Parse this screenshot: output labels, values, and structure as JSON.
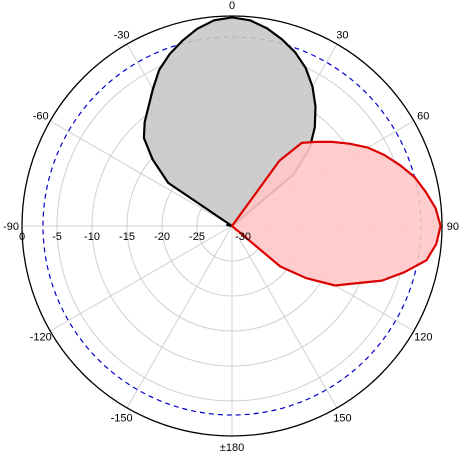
{
  "chart_data": {
    "type": "polar",
    "title": "",
    "angle_ticks": [
      {
        "angle": 0,
        "label": "0"
      },
      {
        "angle": 30,
        "label": "30"
      },
      {
        "angle": 60,
        "label": "60"
      },
      {
        "angle": 90,
        "label": "90"
      },
      {
        "angle": 120,
        "label": "120"
      },
      {
        "angle": 150,
        "label": "150"
      },
      {
        "angle": 180,
        "label": "±180"
      },
      {
        "angle": -150,
        "label": "-150"
      },
      {
        "angle": -120,
        "label": "-120"
      },
      {
        "angle": -90,
        "label": "-90"
      },
      {
        "angle": -60,
        "label": "-60"
      },
      {
        "angle": -30,
        "label": "-30"
      }
    ],
    "radial_ticks": [
      {
        "value": 0,
        "label": "0"
      },
      {
        "value": -5,
        "label": "-5"
      },
      {
        "value": -10,
        "label": "-10"
      },
      {
        "value": -15,
        "label": "-15"
      },
      {
        "value": -20,
        "label": "-20"
      },
      {
        "value": -25,
        "label": "-25"
      },
      {
        "value": -30,
        "label": "-30"
      }
    ],
    "r_range": [
      -30,
      0
    ],
    "grid": true,
    "reference_circle": {
      "value": -3,
      "color": "#0000cc",
      "style": "dashed"
    },
    "series": [
      {
        "color": "#000000",
        "fill": "#c8c8c8",
        "points": [
          [
            -78,
            -29.3
          ],
          [
            -74,
            -30
          ],
          [
            -64,
            -30
          ],
          [
            -56,
            -19
          ],
          [
            -50,
            -15.2
          ],
          [
            -45,
            -12.2
          ],
          [
            -40,
            -10.6
          ],
          [
            -35,
            -9.2
          ],
          [
            -30,
            -7.4
          ],
          [
            -25,
            -5.4
          ],
          [
            -20,
            -3.9
          ],
          [
            -15,
            -2.6
          ],
          [
            -10,
            -1.4
          ],
          [
            -5,
            -0.5
          ],
          [
            0,
            -0.2
          ],
          [
            5,
            -0.5
          ],
          [
            10,
            -1.3
          ],
          [
            15,
            -2.4
          ],
          [
            20,
            -3.6
          ],
          [
            25,
            -5.1
          ],
          [
            30,
            -7.0
          ],
          [
            35,
            -9.2
          ],
          [
            40,
            -11.6
          ],
          [
            45,
            -14.3
          ],
          [
            50,
            -18.5
          ],
          [
            55,
            -30
          ]
        ]
      },
      {
        "color": "#dd0000",
        "fill": "#ffc8c8",
        "points": [
          [
            34,
            -30
          ],
          [
            36,
            -18.5
          ],
          [
            40,
            -14.5
          ],
          [
            45,
            -13.0
          ],
          [
            50,
            -11.3
          ],
          [
            55,
            -9.5
          ],
          [
            60,
            -7.6
          ],
          [
            65,
            -6.0
          ],
          [
            70,
            -4.5
          ],
          [
            75,
            -3.0
          ],
          [
            80,
            -1.9
          ],
          [
            85,
            -0.8
          ],
          [
            90,
            -0.2
          ],
          [
            95,
            -0.7
          ],
          [
            100,
            -1.8
          ],
          [
            105,
            -4.5
          ],
          [
            110,
            -7.2
          ],
          [
            115,
            -10.6
          ],
          [
            120,
            -13.0
          ],
          [
            125,
            -17.0
          ],
          [
            130,
            -21.0
          ],
          [
            140,
            -30
          ]
        ]
      }
    ]
  }
}
